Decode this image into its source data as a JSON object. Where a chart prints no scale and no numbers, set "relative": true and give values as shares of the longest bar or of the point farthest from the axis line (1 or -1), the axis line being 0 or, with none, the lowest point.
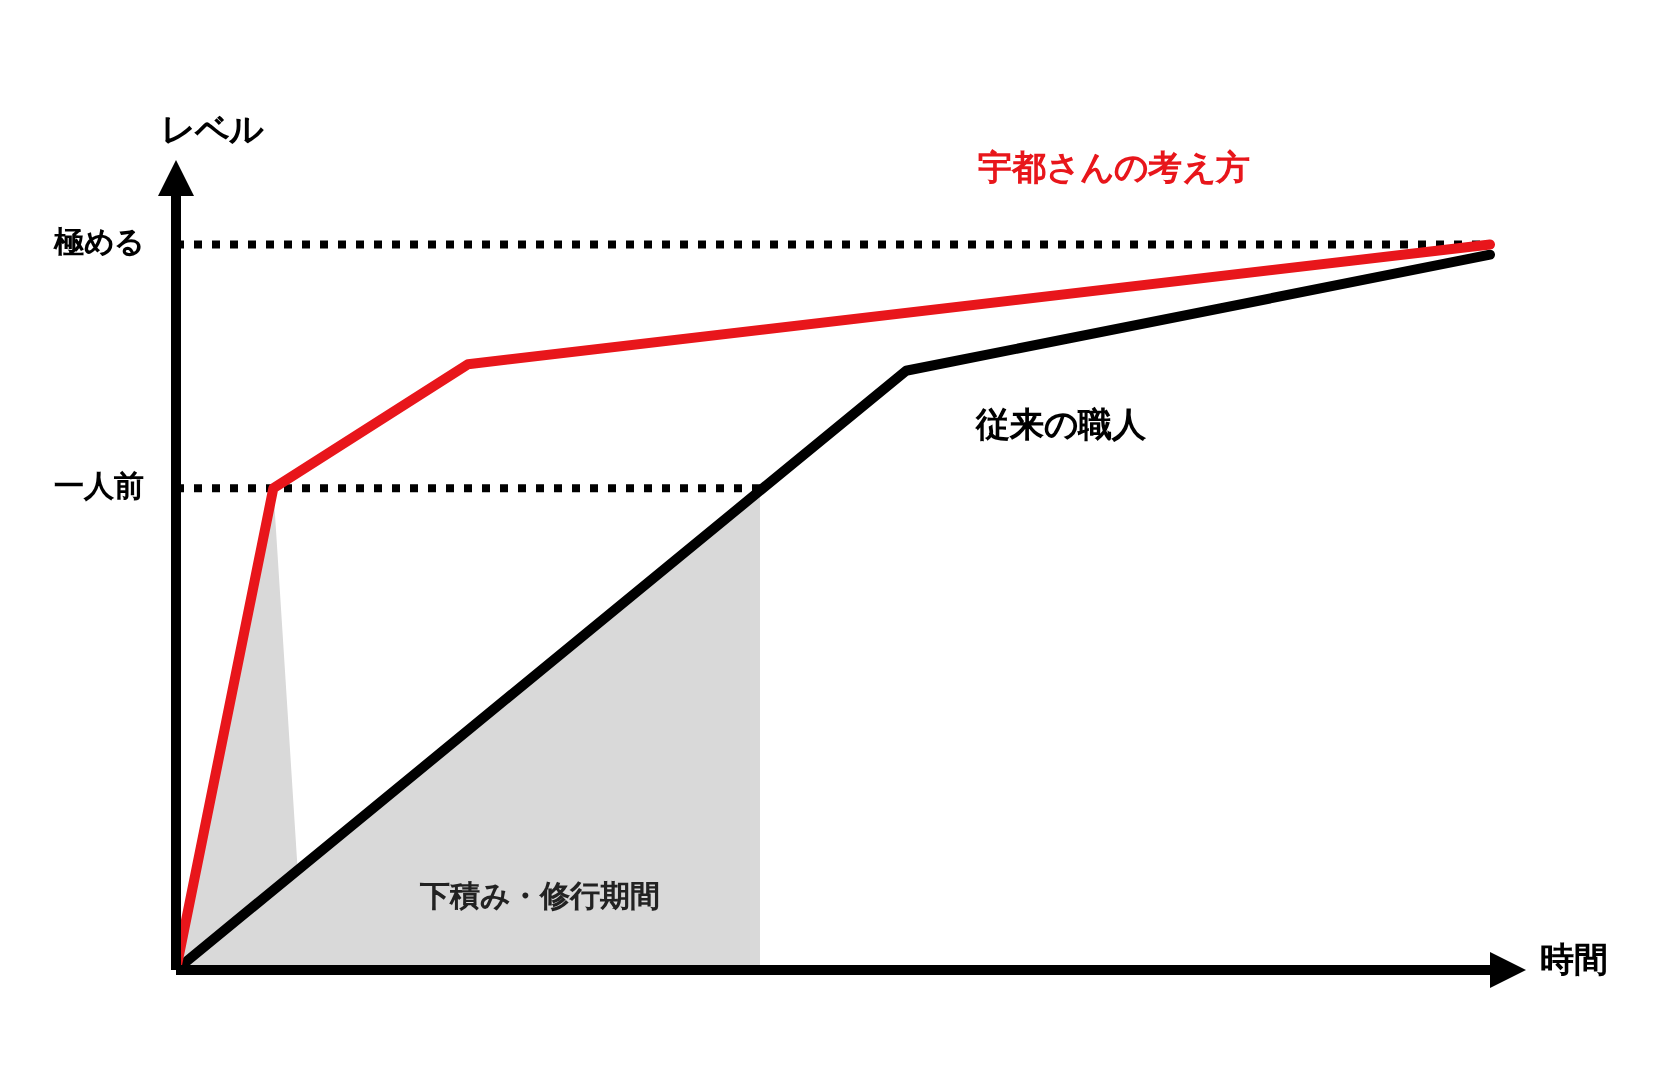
{
  "chart_data": {
    "type": "line",
    "relative": true,
    "xlabel": "時間",
    "ylabel": "レベル",
    "legend": false,
    "marker": "none",
    "line_style": "solid",
    "categories": [
      null,
      null,
      null,
      null,
      null,
      null,
      null,
      null,
      null,
      null,
      null,
      null,
      null,
      null,
      null,
      null,
      null,
      null,
      null,
      null,
      null,
      null,
      null,
      null,
      null,
      null,
      null,
      null,
      null,
      null,
      null,
      null,
      null,
      null,
      null,
      null,
      null,
      null,
      null,
      null,
      null,
      null,
      null,
      null,
      null,
      null,
      null,
      null,
      null,
      null,
      null,
      null,
      null,
      null,
      null
    ],
    "series": [
      {
        "type": "area",
        "color": "#d9d9d9",
        "values": [
          0,
          null,
          null,
          null,
          0.664,
          0.138,
          null,
          null,
          null,
          null,
          null,
          null,
          null,
          null,
          null,
          null,
          null,
          null,
          null,
          null,
          null,
          null,
          null,
          null,
          0.66,
          null,
          null,
          null,
          null,
          null,
          null,
          null,
          null,
          null,
          null,
          null,
          null,
          null,
          null,
          null,
          null,
          null,
          null,
          null,
          null,
          null,
          null,
          null,
          null,
          null,
          null,
          null,
          null,
          null,
          null
        ]
      },
      {
        "name": "宇都さんの考え方",
        "color": "#e8161b",
        "values": [
          0,
          null,
          null,
          null,
          0.664,
          null,
          null,
          null,
          null,
          null,
          null,
          null,
          0.835,
          null,
          null,
          null,
          null,
          null,
          null,
          null,
          null,
          null,
          null,
          null,
          null,
          null,
          null,
          null,
          null,
          null,
          null,
          null,
          null,
          null,
          null,
          null,
          null,
          null,
          null,
          null,
          null,
          null,
          null,
          null,
          null,
          null,
          null,
          null,
          null,
          null,
          null,
          null,
          null,
          null,
          1
        ]
      },
      {
        "name": "従来の職人",
        "color": "#000000",
        "values": [
          0,
          null,
          null,
          null,
          null,
          null,
          null,
          null,
          null,
          null,
          null,
          null,
          null,
          null,
          null,
          null,
          null,
          null,
          null,
          null,
          null,
          null,
          null,
          null,
          null,
          null,
          null,
          null,
          null,
          null,
          0.826,
          null,
          null,
          null,
          null,
          null,
          null,
          null,
          null,
          null,
          null,
          null,
          null,
          null,
          null,
          null,
          null,
          null,
          null,
          null,
          null,
          null,
          null,
          null,
          0.986
        ]
      }
    ],
    "ref_lines": [
      {
        "axis": "y",
        "value": 1,
        "label": "極める",
        "line_style": "dotted",
        "color": "#000000"
      },
      {
        "axis": "y",
        "value": 0.664,
        "label": "一人前",
        "line_style": "dotted",
        "color": "#000000"
      }
    ],
    "annotations": [
      "下積み・修行期間"
    ]
  }
}
